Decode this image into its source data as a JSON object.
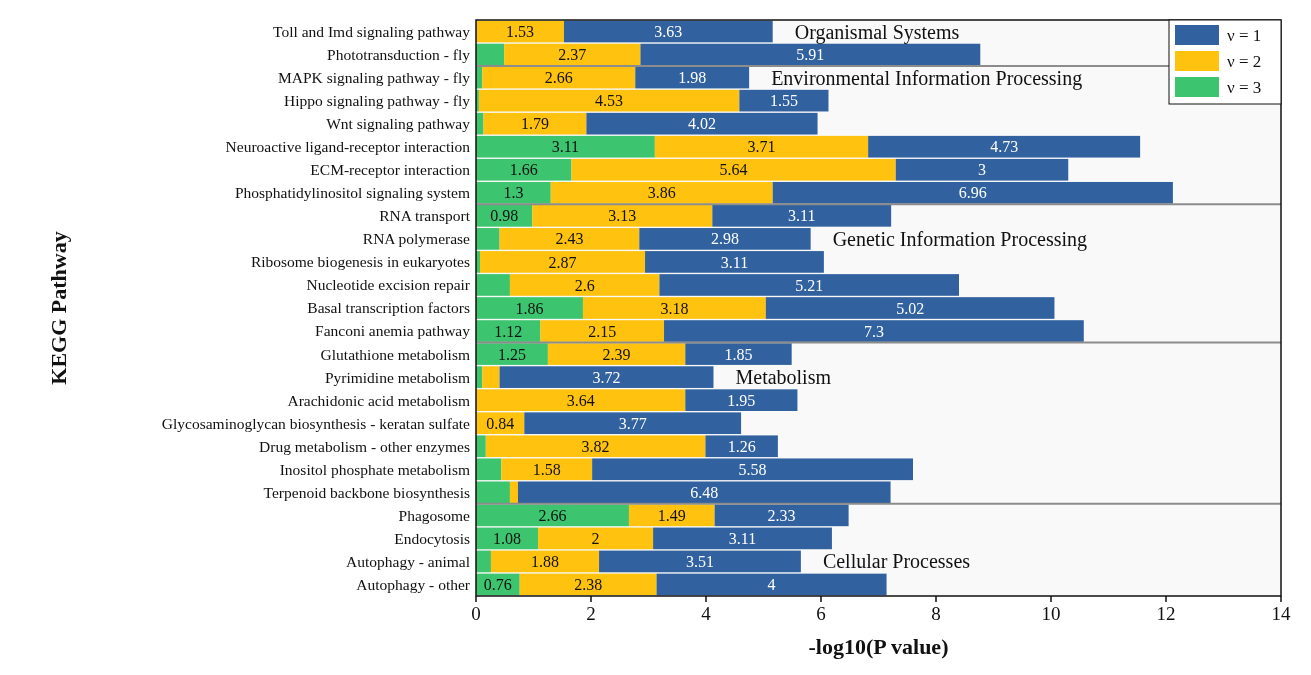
{
  "chart_data": {
    "type": "bar",
    "orientation": "horizontal",
    "stacked": true,
    "xlabel": "-log10(P value)",
    "ylabel": "KEGG Pathway",
    "categories": [
      "Toll and Imd signaling pathway",
      "Phototransduction - fly",
      "MAPK signaling pathway - fly",
      "Hippo signaling pathway - fly",
      "Wnt signaling pathway",
      "Neuroactive ligand-receptor interaction",
      "ECM-receptor interaction",
      "Phosphatidylinositol signaling system",
      "RNA transport",
      "RNA polymerase",
      "Ribosome biogenesis in eukaryotes",
      "Nucleotide excision repair",
      "Basal transcription factors",
      "Fanconi anemia pathway",
      "Glutathione metabolism",
      "Pyrimidine metabolism",
      "Arachidonic acid metabolism",
      "Glycosaminoglycan biosynthesis - keratan sulfate",
      "Drug metabolism - other enzymes",
      "Inositol phosphate metabolism",
      "Terpenoid backbone biosynthesis",
      "Phagosome",
      "Endocytosis",
      "Autophagy - animal",
      "Autophagy - other"
    ],
    "series": [
      {
        "name": "ν = 3",
        "color": "#3cc46e",
        "values": [
          null,
          0.49,
          0.11,
          0.05,
          0.13,
          3.11,
          1.66,
          1.3,
          0.98,
          0.41,
          0.07,
          0.59,
          1.86,
          1.12,
          1.25,
          0.11,
          null,
          null,
          0.17,
          0.44,
          0.59,
          2.66,
          1.08,
          0.26,
          0.76
        ],
        "value_labels": [
          null,
          null,
          null,
          null,
          null,
          "3.11",
          "1.66",
          "1.3",
          "0.98",
          null,
          null,
          null,
          "1.86",
          "1.12",
          "1.25",
          null,
          null,
          null,
          null,
          null,
          null,
          "2.66",
          "1.08",
          null,
          "0.76"
        ]
      },
      {
        "name": "ν = 2",
        "color": "#ffc20e",
        "values": [
          1.53,
          2.37,
          2.66,
          4.53,
          1.79,
          3.71,
          5.64,
          3.86,
          3.13,
          2.43,
          2.87,
          2.6,
          3.18,
          2.15,
          2.39,
          0.3,
          3.64,
          0.84,
          3.82,
          1.58,
          0.14,
          1.49,
          2,
          1.88,
          2.38
        ],
        "value_labels": [
          "1.53",
          "2.37",
          "2.66",
          "4.53",
          "1.79",
          "3.71",
          "5.64",
          "3.86",
          "3.13",
          "2.43",
          "2.87",
          "2.6",
          "3.18",
          "2.15",
          "2.39",
          null,
          "3.64",
          "0.84",
          "3.82",
          "1.58",
          null,
          "1.49",
          "2",
          "1.88",
          "2.38"
        ]
      },
      {
        "name": "ν = 1",
        "color": "#31619e",
        "values": [
          3.63,
          5.91,
          1.98,
          1.55,
          4.02,
          4.73,
          3,
          6.96,
          3.11,
          2.98,
          3.11,
          5.21,
          5.02,
          7.3,
          1.85,
          3.72,
          1.95,
          3.77,
          1.26,
          5.58,
          6.48,
          2.33,
          3.11,
          3.51,
          4
        ],
        "value_labels": [
          "3.63",
          "5.91",
          "1.98",
          "1.55",
          "4.02",
          "4.73",
          "3",
          "6.96",
          "3.11",
          "2.98",
          "3.11",
          "5.21",
          "5.02",
          "7.3",
          "1.85",
          "3.72",
          "1.95",
          "3.77",
          "1.26",
          "5.58",
          "6.48",
          "2.33",
          "3.11",
          "3.51",
          "4"
        ]
      }
    ],
    "xlim": [
      0,
      14
    ],
    "xticks": [
      0,
      2,
      4,
      6,
      8,
      10,
      12,
      14
    ],
    "legend": "top right",
    "grid": false,
    "bands": [
      {
        "axis": "y",
        "from": "Toll and Imd signaling pathway",
        "to": "Phototransduction - fly",
        "label": "Organismal Systems",
        "color": "#8c8c8c"
      },
      {
        "axis": "y",
        "from": "MAPK signaling pathway - fly",
        "to": "Phosphatidylinositol signaling system",
        "label": "Environmental Information Processing",
        "color": "#8c8c8c"
      },
      {
        "axis": "y",
        "from": "RNA transport",
        "to": "Fanconi anemia pathway",
        "label": "Genetic Information Processing",
        "color": "#8c8c8c"
      },
      {
        "axis": "y",
        "from": "Glutathione metabolism",
        "to": "Terpenoid backbone biosynthesis",
        "label": "Metabolism",
        "color": "#8c8c8c"
      },
      {
        "axis": "y",
        "from": "Phagosome",
        "to": "Autophagy - other",
        "label": "Cellular Processes",
        "color": "#8c8c8c"
      }
    ]
  }
}
